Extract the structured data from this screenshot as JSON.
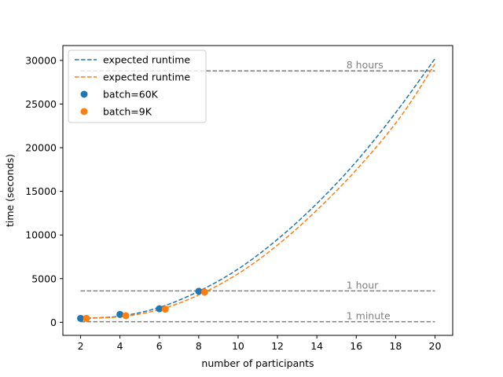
{
  "chart_data": {
    "type": "line",
    "xlabel": "number of participants",
    "ylabel": "time (seconds)",
    "xlim": [
      1.1,
      20.9
    ],
    "ylim": [
      -1500,
      31700
    ],
    "xticks": [
      2,
      4,
      6,
      8,
      10,
      12,
      14,
      16,
      18,
      20
    ],
    "yticks": [
      0,
      5000,
      10000,
      15000,
      20000,
      25000,
      30000
    ],
    "grid": false,
    "legend_position": "top-left",
    "colors": {
      "blue": "#1f77b4",
      "orange": "#ff7f0e",
      "reference": "#808080"
    },
    "curves": [
      {
        "name": "expected runtime",
        "color": "#1f77b4",
        "style": "dashed",
        "x": [
          2,
          4,
          6,
          8,
          10,
          12,
          14,
          16,
          18,
          20
        ],
        "y": [
          450,
          700,
          1700,
          3550,
          6100,
          9500,
          13600,
          18400,
          24000,
          30200
        ]
      },
      {
        "name": "expected runtime",
        "color": "#ff7f0e",
        "style": "dashed",
        "x": [
          2.3,
          4.3,
          6.3,
          8.3,
          10.3,
          12.3,
          14.3,
          16.3,
          18.3,
          20
        ],
        "y": [
          450,
          700,
          1650,
          3450,
          6000,
          9400,
          13500,
          18200,
          23700,
          29600
        ]
      }
    ],
    "series": [
      {
        "name": "batch=60K",
        "color": "#1f77b4",
        "x": [
          2,
          4,
          6,
          8
        ],
        "y": [
          450,
          900,
          1550,
          3550
        ]
      },
      {
        "name": "batch=9K",
        "color": "#ff7f0e",
        "x": [
          2.3,
          4.3,
          6.3,
          8.3
        ],
        "y": [
          450,
          750,
          1500,
          3450
        ]
      }
    ],
    "reference_lines": [
      {
        "y": 60,
        "label": "1 minute",
        "xstart": 2,
        "xend": 20,
        "label_x": 15.5
      },
      {
        "y": 3600,
        "label": "1 hour",
        "xstart": 2,
        "xend": 20,
        "label_x": 15.5
      },
      {
        "y": 28800,
        "label": "8 hours",
        "xstart": 2,
        "xend": 20,
        "label_x": 15.5
      }
    ]
  }
}
